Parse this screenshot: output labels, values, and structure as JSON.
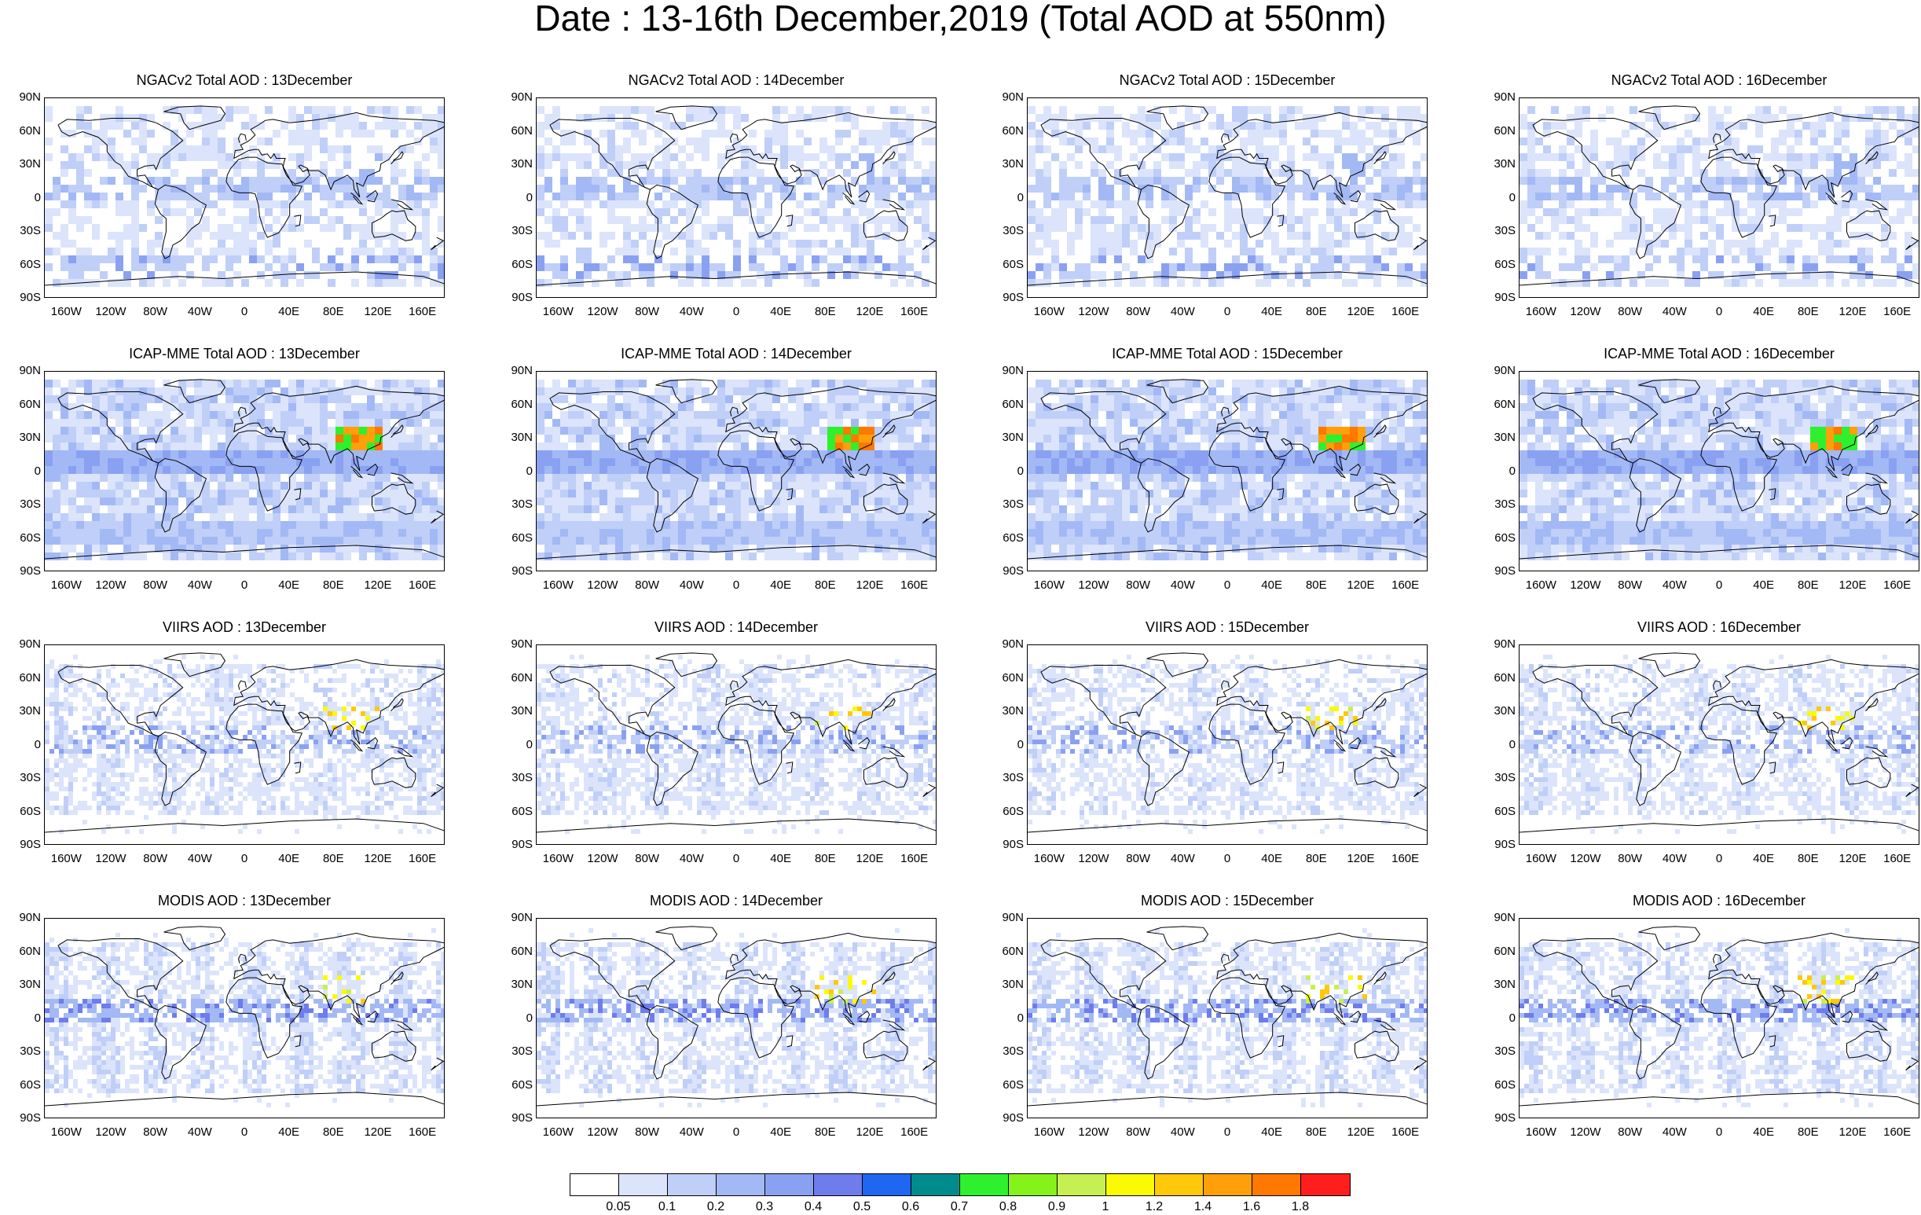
{
  "title": "Date : 13-16th December,2019 (Total AOD at 550nm)",
  "lat_labels": [
    "90N",
    "60N",
    "30N",
    "0",
    "30S",
    "60S",
    "90S"
  ],
  "lon_labels": [
    "160W",
    "120W",
    "80W",
    "40W",
    "0",
    "40E",
    "80E",
    "120E",
    "160E"
  ],
  "rows": [
    {
      "panels": [
        {
          "title": "NGACv2 Total AOD : 13December"
        },
        {
          "title": "NGACv2 Total AOD : 14December"
        },
        {
          "title": "NGACv2 Total AOD : 15December"
        },
        {
          "title": "NGACv2 Total AOD : 16December"
        }
      ]
    },
    {
      "panels": [
        {
          "title": "ICAP-MME Total AOD : 13December"
        },
        {
          "title": "ICAP-MME Total AOD : 14December"
        },
        {
          "title": "ICAP-MME Total AOD : 15December"
        },
        {
          "title": "ICAP-MME Total AOD : 16December"
        }
      ]
    },
    {
      "panels": [
        {
          "title": "VIIRS AOD : 13December"
        },
        {
          "title": "VIIRS AOD : 14December"
        },
        {
          "title": "VIIRS AOD : 15December"
        },
        {
          "title": "VIIRS AOD : 16December"
        }
      ]
    },
    {
      "panels": [
        {
          "title": "MODIS AOD : 13December"
        },
        {
          "title": "MODIS AOD : 14December"
        },
        {
          "title": "MODIS AOD : 15December"
        },
        {
          "title": "MODIS AOD : 16December"
        }
      ]
    }
  ],
  "colorbar": {
    "colors": [
      "#ffffff",
      "#dbe4fb",
      "#bfcff8",
      "#a3b9f5",
      "#8aa1f2",
      "#6e7cec",
      "#1f66f0",
      "#008c8c",
      "#2ef02e",
      "#86f21c",
      "#c6f052",
      "#fafa05",
      "#ffc80a",
      "#ffa00a",
      "#ff7800",
      "#ff1e1e"
    ],
    "tick_labels": [
      "0.05",
      "0.1",
      "0.2",
      "0.3",
      "0.4",
      "0.5",
      "0.6",
      "0.7",
      "0.8",
      "0.9",
      "1",
      "1.2",
      "1.4",
      "1.6",
      "1.8"
    ]
  }
}
